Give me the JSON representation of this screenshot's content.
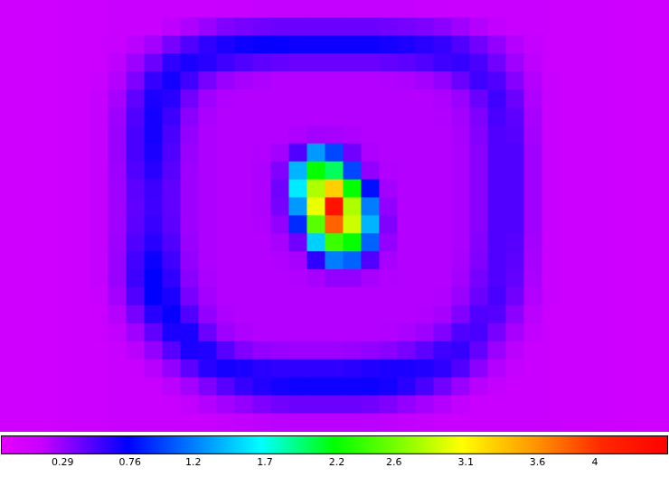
{
  "chart_data": {
    "type": "heatmap",
    "tick_labels": false,
    "cells": [
      [
        0.06,
        0.06,
        0.07,
        0.09,
        0.1,
        0.11,
        0.12,
        0.13,
        0.13,
        0.13,
        0.13,
        0.13,
        0.14,
        0.14,
        0.15,
        0.15,
        0.15,
        0.15,
        0.15,
        0.15,
        0.15,
        0.15,
        0.15,
        0.14,
        0.14,
        0.13,
        0.13,
        0.13,
        0.13,
        0.13,
        0.12,
        0.11,
        0.1,
        0.09,
        0.08,
        0.07,
        0.07
      ],
      [
        0.06,
        0.06,
        0.07,
        0.09,
        0.1,
        0.11,
        0.12,
        0.13,
        0.14,
        0.17,
        0.22,
        0.28,
        0.35,
        0.38,
        0.4,
        0.42,
        0.42,
        0.42,
        0.42,
        0.42,
        0.42,
        0.4,
        0.38,
        0.36,
        0.32,
        0.26,
        0.2,
        0.16,
        0.14,
        0.13,
        0.12,
        0.11,
        0.1,
        0.09,
        0.08,
        0.07,
        0.07
      ],
      [
        0.06,
        0.06,
        0.07,
        0.09,
        0.1,
        0.12,
        0.14,
        0.18,
        0.25,
        0.38,
        0.5,
        0.6,
        0.66,
        0.7,
        0.72,
        0.72,
        0.7,
        0.7,
        0.7,
        0.7,
        0.7,
        0.68,
        0.66,
        0.62,
        0.58,
        0.5,
        0.4,
        0.3,
        0.2,
        0.15,
        0.13,
        0.11,
        0.1,
        0.09,
        0.08,
        0.07,
        0.07
      ],
      [
        0.06,
        0.06,
        0.07,
        0.09,
        0.1,
        0.13,
        0.17,
        0.27,
        0.42,
        0.6,
        0.66,
        0.62,
        0.55,
        0.5,
        0.46,
        0.44,
        0.42,
        0.42,
        0.42,
        0.42,
        0.42,
        0.44,
        0.46,
        0.5,
        0.55,
        0.58,
        0.52,
        0.4,
        0.26,
        0.17,
        0.13,
        0.11,
        0.1,
        0.09,
        0.08,
        0.07,
        0.07
      ],
      [
        0.06,
        0.06,
        0.07,
        0.09,
        0.11,
        0.14,
        0.2,
        0.36,
        0.58,
        0.68,
        0.55,
        0.38,
        0.28,
        0.24,
        0.22,
        0.2,
        0.2,
        0.2,
        0.2,
        0.2,
        0.2,
        0.21,
        0.22,
        0.25,
        0.3,
        0.42,
        0.55,
        0.5,
        0.34,
        0.2,
        0.14,
        0.11,
        0.1,
        0.09,
        0.08,
        0.07,
        0.07
      ],
      [
        0.06,
        0.06,
        0.07,
        0.09,
        0.11,
        0.15,
        0.24,
        0.45,
        0.66,
        0.62,
        0.4,
        0.26,
        0.21,
        0.2,
        0.2,
        0.2,
        0.2,
        0.2,
        0.2,
        0.2,
        0.2,
        0.2,
        0.2,
        0.2,
        0.22,
        0.28,
        0.42,
        0.55,
        0.42,
        0.22,
        0.14,
        0.11,
        0.1,
        0.09,
        0.08,
        0.07,
        0.07
      ],
      [
        0.06,
        0.06,
        0.07,
        0.09,
        0.11,
        0.15,
        0.27,
        0.5,
        0.68,
        0.56,
        0.33,
        0.23,
        0.2,
        0.2,
        0.2,
        0.2,
        0.2,
        0.2,
        0.2,
        0.2,
        0.2,
        0.2,
        0.2,
        0.2,
        0.21,
        0.25,
        0.36,
        0.52,
        0.46,
        0.24,
        0.14,
        0.11,
        0.1,
        0.09,
        0.08,
        0.07,
        0.07
      ],
      [
        0.06,
        0.06,
        0.07,
        0.09,
        0.11,
        0.15,
        0.28,
        0.52,
        0.68,
        0.52,
        0.3,
        0.22,
        0.2,
        0.2,
        0.2,
        0.2,
        0.22,
        0.25,
        0.24,
        0.22,
        0.2,
        0.2,
        0.2,
        0.2,
        0.2,
        0.24,
        0.34,
        0.5,
        0.48,
        0.25,
        0.14,
        0.11,
        0.1,
        0.09,
        0.08,
        0.07,
        0.07
      ],
      [
        0.06,
        0.06,
        0.07,
        0.09,
        0.11,
        0.15,
        0.28,
        0.52,
        0.66,
        0.5,
        0.28,
        0.22,
        0.2,
        0.2,
        0.21,
        0.25,
        0.5,
        1.3,
        1.0,
        0.4,
        0.22,
        0.2,
        0.2,
        0.2,
        0.2,
        0.23,
        0.33,
        0.5,
        0.5,
        0.26,
        0.14,
        0.11,
        0.1,
        0.09,
        0.08,
        0.07,
        0.07
      ],
      [
        0.06,
        0.06,
        0.07,
        0.09,
        0.11,
        0.15,
        0.27,
        0.5,
        0.62,
        0.48,
        0.27,
        0.22,
        0.2,
        0.2,
        0.22,
        0.35,
        1.4,
        2.2,
        2.0,
        1.0,
        0.3,
        0.21,
        0.2,
        0.2,
        0.2,
        0.23,
        0.33,
        0.5,
        0.5,
        0.26,
        0.14,
        0.11,
        0.1,
        0.09,
        0.08,
        0.07,
        0.07
      ],
      [
        0.06,
        0.06,
        0.07,
        0.09,
        0.11,
        0.15,
        0.26,
        0.46,
        0.56,
        0.45,
        0.27,
        0.22,
        0.2,
        0.2,
        0.22,
        0.4,
        1.6,
        2.8,
        3.3,
        2.2,
        0.8,
        0.25,
        0.2,
        0.2,
        0.2,
        0.23,
        0.33,
        0.5,
        0.5,
        0.26,
        0.14,
        0.11,
        0.1,
        0.09,
        0.08,
        0.07,
        0.07
      ],
      [
        0.06,
        0.06,
        0.07,
        0.09,
        0.11,
        0.15,
        0.26,
        0.45,
        0.55,
        0.45,
        0.27,
        0.22,
        0.2,
        0.2,
        0.22,
        0.38,
        1.3,
        3.0,
        4.3,
        2.8,
        1.2,
        0.3,
        0.2,
        0.2,
        0.2,
        0.23,
        0.33,
        0.5,
        0.5,
        0.26,
        0.14,
        0.11,
        0.1,
        0.09,
        0.08,
        0.07,
        0.07
      ],
      [
        0.06,
        0.06,
        0.07,
        0.09,
        0.11,
        0.15,
        0.26,
        0.46,
        0.57,
        0.46,
        0.27,
        0.22,
        0.2,
        0.2,
        0.21,
        0.3,
        0.9,
        2.5,
        3.8,
        2.9,
        1.4,
        0.35,
        0.2,
        0.2,
        0.2,
        0.23,
        0.33,
        0.5,
        0.5,
        0.26,
        0.14,
        0.11,
        0.1,
        0.09,
        0.08,
        0.07,
        0.07
      ],
      [
        0.06,
        0.06,
        0.07,
        0.09,
        0.11,
        0.15,
        0.27,
        0.5,
        0.62,
        0.5,
        0.28,
        0.22,
        0.2,
        0.2,
        0.2,
        0.24,
        0.4,
        1.5,
        2.4,
        2.2,
        1.1,
        0.3,
        0.2,
        0.2,
        0.2,
        0.23,
        0.34,
        0.5,
        0.48,
        0.25,
        0.14,
        0.11,
        0.1,
        0.09,
        0.08,
        0.07,
        0.07
      ],
      [
        0.06,
        0.06,
        0.07,
        0.09,
        0.11,
        0.15,
        0.28,
        0.54,
        0.7,
        0.55,
        0.3,
        0.22,
        0.2,
        0.2,
        0.2,
        0.21,
        0.24,
        0.6,
        1.2,
        1.1,
        0.5,
        0.24,
        0.2,
        0.2,
        0.2,
        0.24,
        0.35,
        0.5,
        0.46,
        0.24,
        0.14,
        0.11,
        0.1,
        0.09,
        0.08,
        0.07,
        0.07
      ],
      [
        0.06,
        0.06,
        0.07,
        0.09,
        0.11,
        0.15,
        0.28,
        0.56,
        0.74,
        0.6,
        0.33,
        0.23,
        0.2,
        0.2,
        0.2,
        0.2,
        0.21,
        0.24,
        0.3,
        0.3,
        0.24,
        0.21,
        0.2,
        0.2,
        0.2,
        0.25,
        0.38,
        0.5,
        0.44,
        0.23,
        0.14,
        0.11,
        0.1,
        0.09,
        0.08,
        0.07,
        0.07
      ],
      [
        0.06,
        0.06,
        0.07,
        0.09,
        0.11,
        0.14,
        0.25,
        0.5,
        0.74,
        0.66,
        0.38,
        0.25,
        0.2,
        0.2,
        0.2,
        0.2,
        0.2,
        0.2,
        0.2,
        0.2,
        0.2,
        0.2,
        0.2,
        0.2,
        0.21,
        0.28,
        0.42,
        0.52,
        0.4,
        0.21,
        0.14,
        0.11,
        0.1,
        0.09,
        0.08,
        0.07,
        0.07
      ],
      [
        0.06,
        0.06,
        0.07,
        0.09,
        0.1,
        0.13,
        0.2,
        0.38,
        0.62,
        0.72,
        0.5,
        0.3,
        0.22,
        0.2,
        0.2,
        0.2,
        0.2,
        0.2,
        0.2,
        0.2,
        0.2,
        0.2,
        0.2,
        0.21,
        0.24,
        0.35,
        0.5,
        0.48,
        0.32,
        0.18,
        0.13,
        0.11,
        0.1,
        0.09,
        0.08,
        0.07,
        0.07
      ],
      [
        0.06,
        0.06,
        0.07,
        0.09,
        0.1,
        0.12,
        0.16,
        0.26,
        0.45,
        0.66,
        0.66,
        0.42,
        0.27,
        0.22,
        0.2,
        0.2,
        0.2,
        0.2,
        0.2,
        0.2,
        0.2,
        0.21,
        0.23,
        0.27,
        0.35,
        0.5,
        0.52,
        0.38,
        0.24,
        0.16,
        0.13,
        0.11,
        0.1,
        0.09,
        0.08,
        0.07,
        0.07
      ],
      [
        0.06,
        0.06,
        0.07,
        0.09,
        0.1,
        0.11,
        0.14,
        0.18,
        0.3,
        0.48,
        0.66,
        0.64,
        0.48,
        0.36,
        0.3,
        0.28,
        0.27,
        0.27,
        0.27,
        0.28,
        0.3,
        0.33,
        0.38,
        0.46,
        0.55,
        0.58,
        0.44,
        0.28,
        0.18,
        0.14,
        0.12,
        0.11,
        0.1,
        0.09,
        0.08,
        0.07,
        0.07
      ],
      [
        0.06,
        0.06,
        0.07,
        0.09,
        0.1,
        0.11,
        0.12,
        0.14,
        0.19,
        0.3,
        0.46,
        0.62,
        0.68,
        0.66,
        0.62,
        0.6,
        0.6,
        0.6,
        0.6,
        0.62,
        0.64,
        0.66,
        0.66,
        0.64,
        0.6,
        0.5,
        0.32,
        0.2,
        0.15,
        0.13,
        0.12,
        0.11,
        0.1,
        0.09,
        0.08,
        0.07,
        0.07
      ],
      [
        0.06,
        0.06,
        0.07,
        0.09,
        0.1,
        0.11,
        0.12,
        0.13,
        0.14,
        0.18,
        0.25,
        0.36,
        0.48,
        0.58,
        0.64,
        0.68,
        0.7,
        0.7,
        0.7,
        0.7,
        0.7,
        0.68,
        0.62,
        0.52,
        0.4,
        0.28,
        0.19,
        0.15,
        0.13,
        0.13,
        0.12,
        0.11,
        0.1,
        0.09,
        0.08,
        0.07,
        0.07
      ],
      [
        0.06,
        0.06,
        0.07,
        0.09,
        0.1,
        0.11,
        0.12,
        0.13,
        0.13,
        0.14,
        0.16,
        0.2,
        0.25,
        0.3,
        0.36,
        0.4,
        0.42,
        0.42,
        0.42,
        0.42,
        0.4,
        0.36,
        0.3,
        0.25,
        0.2,
        0.16,
        0.14,
        0.13,
        0.13,
        0.13,
        0.12,
        0.11,
        0.1,
        0.09,
        0.08,
        0.07,
        0.07
      ],
      [
        0.06,
        0.06,
        0.07,
        0.09,
        0.1,
        0.11,
        0.12,
        0.13,
        0.13,
        0.13,
        0.13,
        0.14,
        0.15,
        0.16,
        0.17,
        0.18,
        0.18,
        0.18,
        0.18,
        0.18,
        0.18,
        0.17,
        0.16,
        0.15,
        0.14,
        0.13,
        0.13,
        0.13,
        0.13,
        0.13,
        0.12,
        0.11,
        0.1,
        0.09,
        0.08,
        0.07,
        0.07
      ]
    ],
    "colorbar": {
      "range": [
        -0.14,
        4.51
      ],
      "ticks": [
        0.29,
        0.76,
        1.2,
        1.7,
        2.2,
        2.6,
        3.1,
        3.6,
        4
      ]
    }
  }
}
